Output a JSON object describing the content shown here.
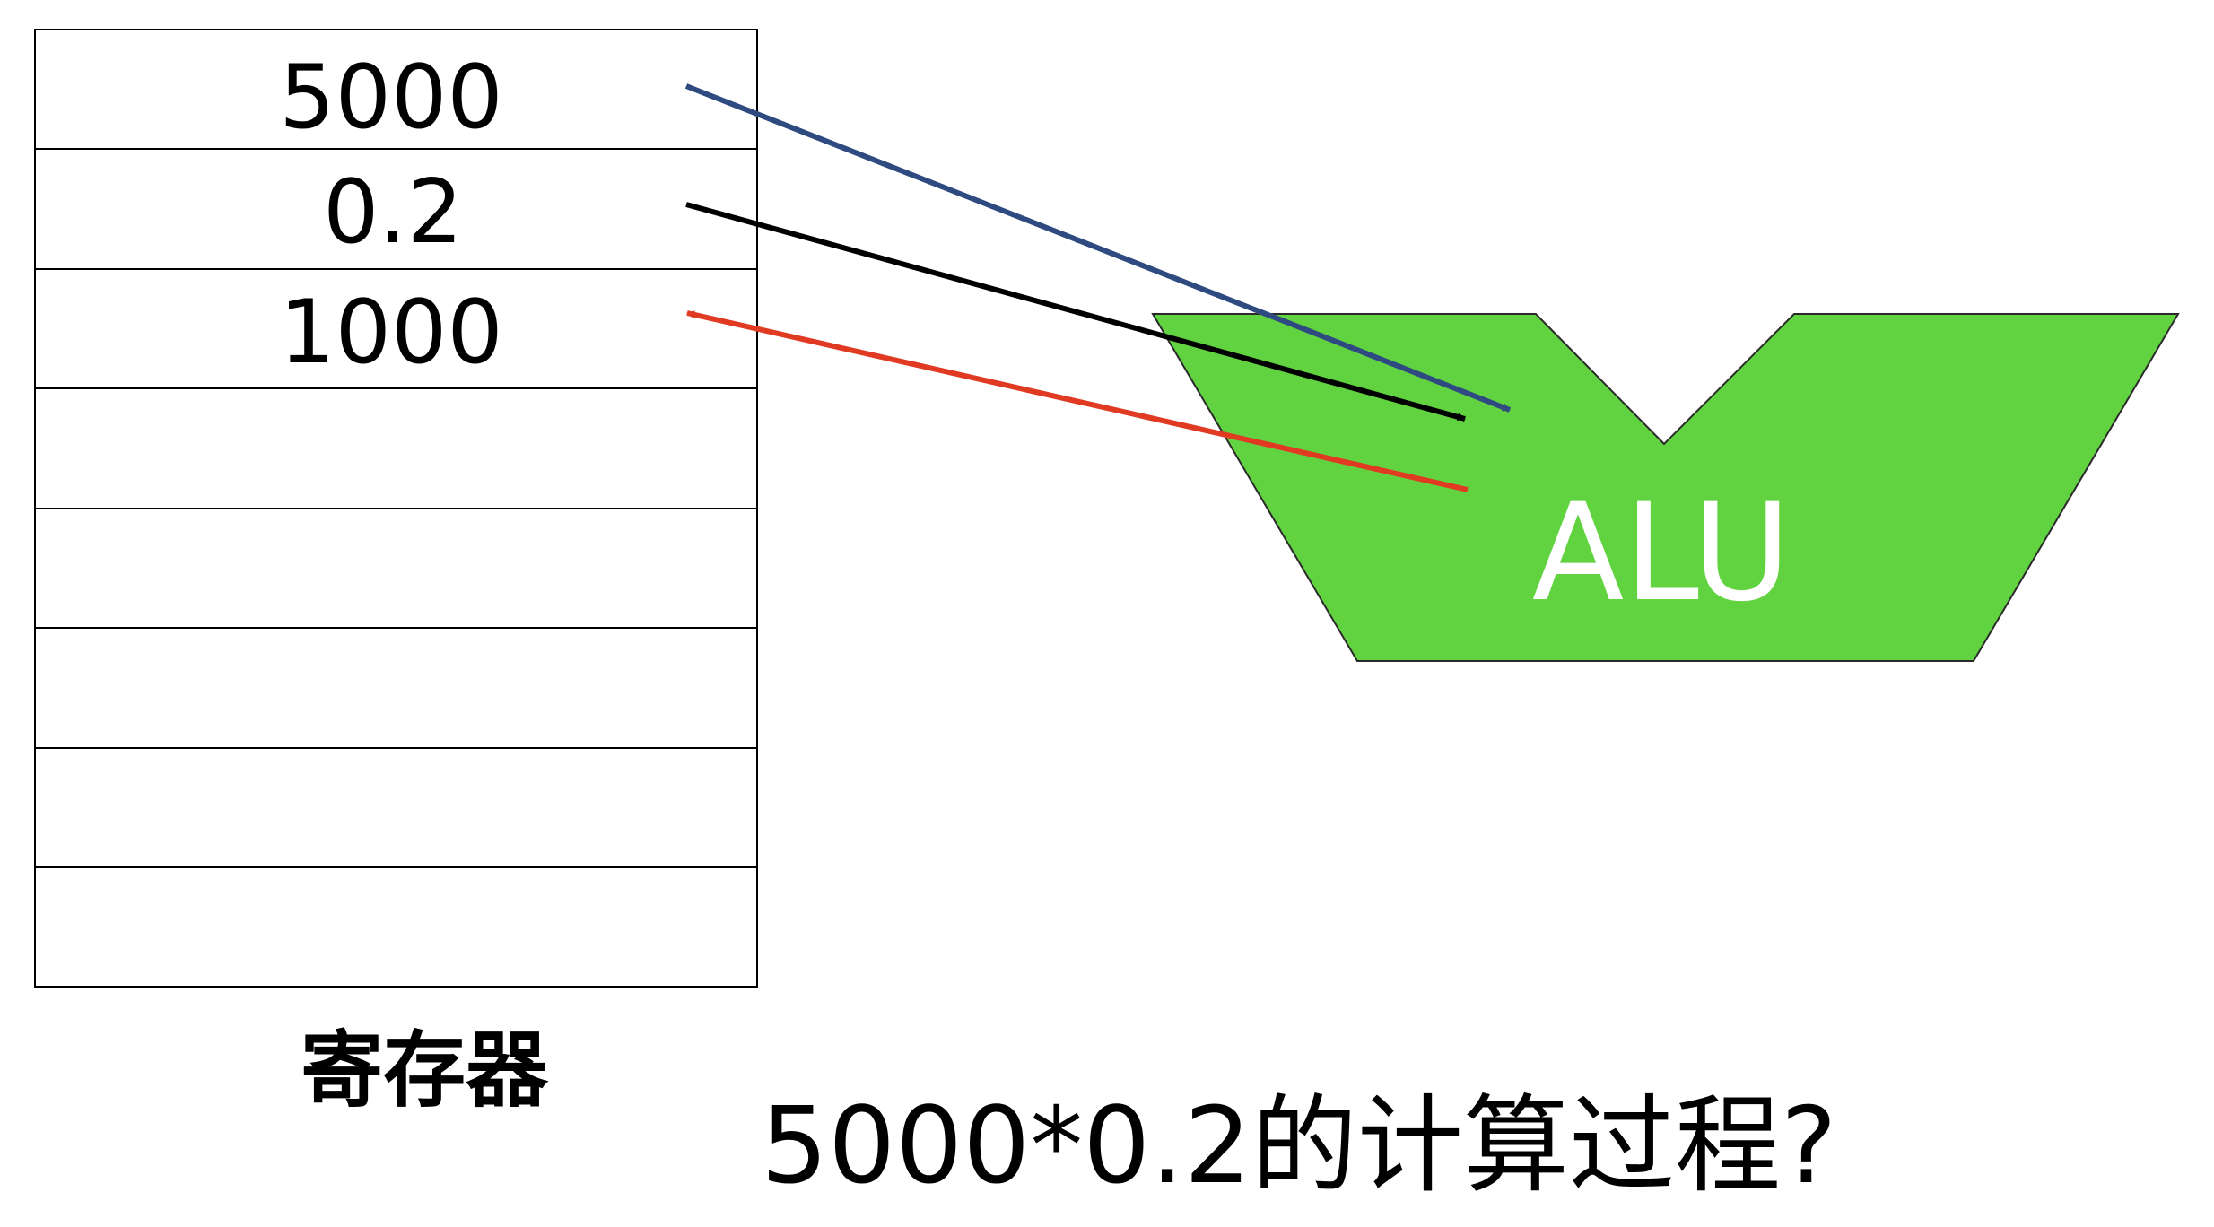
{
  "registers": {
    "values": [
      "5000",
      "0.2",
      "1000",
      "",
      "",
      "",
      "",
      ""
    ],
    "label": "寄存器"
  },
  "alu": {
    "label": "ALU",
    "fill_color": "#62d340"
  },
  "arrows": {
    "operand1_color": "#2e4a80",
    "operand2_color": "#000000",
    "result_color": "#e03a23"
  },
  "question": "5000*0.2的计算过程?"
}
